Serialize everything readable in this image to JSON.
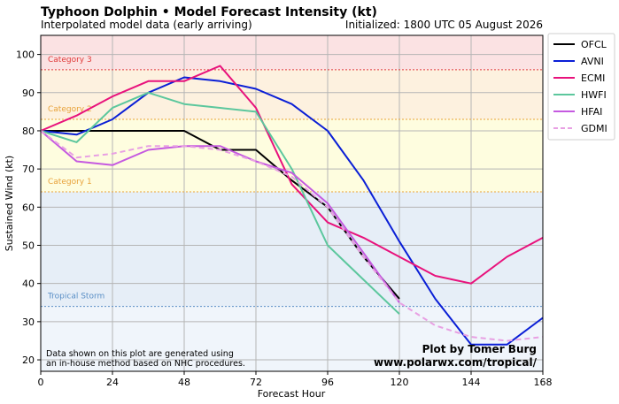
{
  "chart_data": {
    "type": "line",
    "title": "Typhoon Dolphin • Model Forecast Intensity (kt)",
    "subtitle": "Interpolated model data (early arriving)",
    "initialized": "Initialized: 1800 UTC 05 August 2026",
    "xlabel": "Forecast Hour",
    "ylabel": "Sustained Wind (kt)",
    "xlim": [
      0,
      168
    ],
    "ylim": [
      17,
      105
    ],
    "xticks": [
      0,
      24,
      48,
      72,
      96,
      120,
      144,
      168
    ],
    "yticks": [
      20,
      30,
      40,
      50,
      60,
      70,
      80,
      90,
      100
    ],
    "grid": true,
    "legend_position": "outside-right",
    "bands": [
      {
        "label": "",
        "from": 17,
        "to": 34,
        "color": "#f0f5fb"
      },
      {
        "label": "",
        "from": 34,
        "to": 64,
        "color": "#e6eef7"
      },
      {
        "label": "",
        "from": 64,
        "to": 83,
        "color": "#fefddf"
      },
      {
        "label": "",
        "from": 83,
        "to": 96,
        "color": "#fdf1df"
      },
      {
        "label": "",
        "from": 96,
        "to": 105,
        "color": "#fbe2e3"
      }
    ],
    "thresholds": [
      {
        "label": "Tropical Storm",
        "value": 34,
        "color": "#5a8fc6"
      },
      {
        "label": "Category 1",
        "value": 64,
        "color": "#e8a23a"
      },
      {
        "label": "Category 2",
        "value": 83,
        "color": "#e8a23a"
      },
      {
        "label": "Category 3",
        "value": 96,
        "color": "#e03a3a"
      }
    ],
    "series": [
      {
        "name": "OFCL",
        "color": "#000000",
        "dashed": false,
        "x": [
          0,
          12,
          24,
          36,
          48,
          60,
          72,
          84,
          96,
          108,
          120
        ],
        "y": [
          80,
          80,
          80,
          80,
          80,
          75,
          75,
          67,
          60,
          47,
          36
        ]
      },
      {
        "name": "AVNI",
        "color": "#0a1fd6",
        "dashed": false,
        "x": [
          0,
          12,
          24,
          36,
          48,
          60,
          72,
          84,
          96,
          108,
          120,
          132,
          144,
          156,
          168
        ],
        "y": [
          80,
          79,
          83,
          90,
          94,
          93,
          91,
          87,
          80,
          67,
          51,
          36,
          24,
          24,
          31
        ]
      },
      {
        "name": "ECMI",
        "color": "#e8127c",
        "dashed": false,
        "x": [
          0,
          12,
          24,
          36,
          48,
          60,
          72,
          84,
          96,
          108,
          120,
          132,
          144,
          156,
          168
        ],
        "y": [
          80,
          84,
          89,
          93,
          93,
          97,
          86,
          66,
          56,
          52,
          47,
          42,
          40,
          47,
          52
        ]
      },
      {
        "name": "HWFI",
        "color": "#5cc79d",
        "dashed": false,
        "x": [
          0,
          12,
          24,
          36,
          48,
          60,
          72,
          84,
          96,
          108,
          120
        ],
        "y": [
          80,
          77,
          86,
          90,
          87,
          86,
          85,
          70,
          50,
          41,
          32
        ]
      },
      {
        "name": "HFAI",
        "color": "#c55ae0",
        "dashed": false,
        "x": [
          0,
          12,
          24,
          36,
          48,
          60,
          72,
          84,
          96,
          108,
          120
        ],
        "y": [
          80,
          72,
          71,
          75,
          76,
          76,
          72,
          69,
          61,
          48,
          35
        ]
      },
      {
        "name": "GDMI",
        "color": "#e8a0e3",
        "dashed": true,
        "x": [
          0,
          12,
          24,
          36,
          48,
          60,
          72,
          84,
          96,
          108,
          120,
          132,
          144,
          156,
          168
        ],
        "y": [
          80,
          73,
          74,
          76,
          76,
          75,
          72,
          68,
          60,
          47,
          35,
          29,
          26,
          25,
          26
        ]
      }
    ],
    "footnote_lines": [
      "Data shown on this plot are generated using",
      "an in-house method based on NHC procedures."
    ],
    "credit_lines": [
      "Plot by Tomer Burg",
      "www.polarwx.com/tropical/"
    ]
  }
}
